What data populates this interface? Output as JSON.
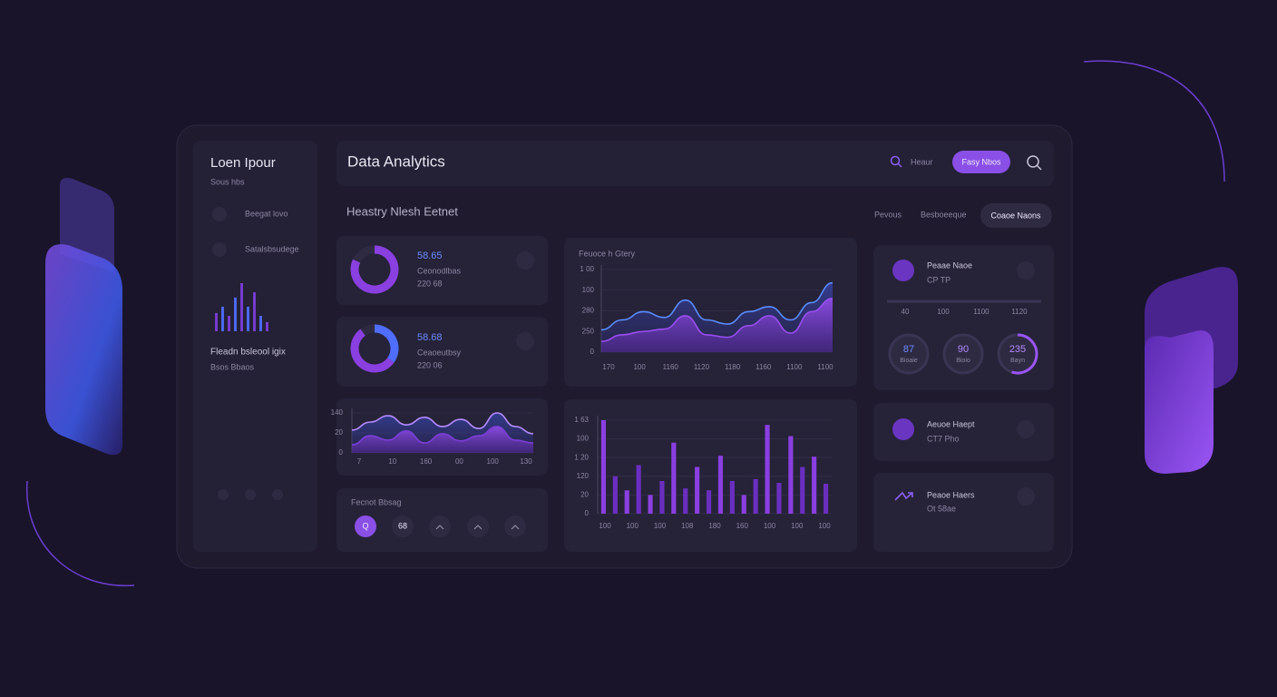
{
  "sidebar": {
    "title": "Loen Ipour",
    "subtitle": "Sous hbs",
    "nav": [
      "Beegat lovo",
      "Satalsbsudege"
    ],
    "caption": "Fleadn bsleool igix",
    "caption_sub": "Bsos Bbaos"
  },
  "topbar": {
    "title": "Data Analytics",
    "search": "Heaur",
    "button": "Fasy Nbos"
  },
  "section": {
    "heading": "Heastry Nlesh Eetnet",
    "links": [
      "Pevous",
      "Besboeeque"
    ],
    "button": "Coaoe Naons"
  },
  "stat_cards": [
    {
      "value": "58.65",
      "label": "Ceonodlbas",
      "sub": "220 68",
      "range": [
        0,
        100
      ],
      "ring": [
        {
          "color": "#8a3fe0",
          "value": 82
        }
      ]
    },
    {
      "value": "58.68",
      "label": "Ceaoeutbsy",
      "sub": "220 06",
      "range": [
        0,
        100
      ],
      "ring": [
        {
          "color": "#4f6dff",
          "value": 35
        },
        {
          "color": "#8a3fe0",
          "value": 55
        }
      ]
    }
  ],
  "actions": {
    "title": "Fecnot Bbsag",
    "buttons": [
      "Q",
      "68"
    ]
  },
  "chart_data": [
    {
      "type": "bar",
      "ylim": [
        0,
        100
      ],
      "values": [
        38,
        51,
        32,
        70,
        100,
        51,
        81,
        32,
        19
      ],
      "colors": [
        "#7a3ed8",
        "#4f6dff"
      ]
    },
    {
      "type": "area",
      "ylim": [
        0,
        100
      ],
      "y_labels": [
        "140",
        "20",
        "0"
      ],
      "x_labels": [
        "7",
        "10",
        "160",
        "00",
        "100",
        "130"
      ],
      "series": [
        {
          "color": "#b58bff",
          "values": [
            57,
            77,
            93,
            70,
            89,
            66,
            84,
            61,
            100,
            66,
            48
          ]
        },
        {
          "color": "#7a3ed8",
          "values": [
            20,
            43,
            32,
            55,
            25,
            48,
            30,
            43,
            66,
            32,
            25
          ]
        }
      ]
    },
    {
      "type": "area",
      "title": "Feuoce h Gtery",
      "ylim": [
        0,
        100
      ],
      "y_labels": [
        "1 00",
        "100",
        "280",
        "250",
        "0"
      ],
      "x_labels": [
        "170",
        "100",
        "1160",
        "1120",
        "1180",
        "1160",
        "1100",
        "1100"
      ],
      "series": [
        {
          "color": "#5a8cff",
          "values": [
            27,
            39,
            49,
            42,
            63,
            39,
            34,
            49,
            55,
            39,
            60,
            84
          ]
        },
        {
          "color": "#9a4ef0",
          "values": [
            13,
            21,
            25,
            28,
            44,
            21,
            18,
            32,
            44,
            23,
            49,
            65
          ]
        }
      ]
    },
    {
      "type": "bar",
      "ylim": [
        0,
        100
      ],
      "y_labels": [
        "1 63",
        "100",
        "1 20",
        "120",
        "20",
        "0"
      ],
      "x_labels": [
        "100",
        "100",
        "100",
        "108",
        "180",
        "160",
        "100",
        "100",
        "100"
      ],
      "values": [
        100,
        40,
        25,
        52,
        20,
        35,
        76,
        27,
        50,
        25,
        62,
        35,
        20,
        37,
        95,
        33,
        83,
        50,
        61,
        32
      ],
      "colors": [
        "#8a3fe0",
        "#6a2ec0"
      ]
    }
  ],
  "profile": {
    "name": "Peaae Naoe",
    "sub": "CP TP",
    "slider_labels": [
      "40",
      "100",
      "1100",
      "1120"
    ],
    "gauges": [
      {
        "value": "87",
        "label": "Bioaie"
      },
      {
        "value": "90",
        "label": "Bioio"
      },
      {
        "value": "235",
        "label": "Bayn",
        "arc": 55,
        "range": [
          0,
          100
        ]
      }
    ]
  },
  "items": [
    {
      "name": "Aeuoe Haept",
      "sub": "CT7 Pho"
    },
    {
      "name": "Peaoe Haers",
      "sub": "Ot 58ae"
    }
  ]
}
